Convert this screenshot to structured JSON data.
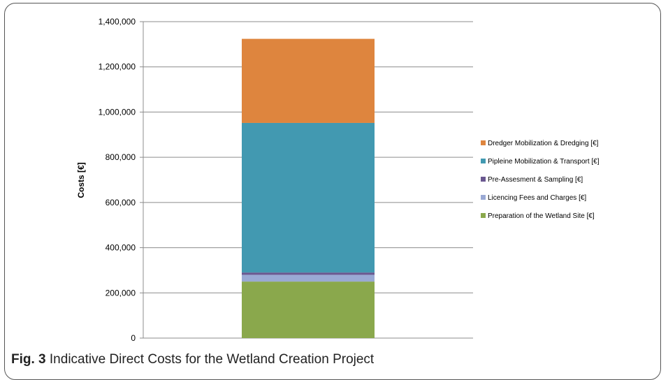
{
  "caption": {
    "label": "Fig. 3",
    "text": "Indicative Direct Costs for the Wetland Creation Project"
  },
  "chart_data": {
    "type": "bar",
    "stacked": true,
    "categories": [
      ""
    ],
    "ylabel": "Costs [€]",
    "ylim": [
      0,
      1400000
    ],
    "yticks": [
      0,
      200000,
      400000,
      600000,
      800000,
      1000000,
      1200000,
      1400000
    ],
    "ytick_labels": [
      "0",
      "200,000",
      "400,000",
      "600,000",
      "800,000",
      "1,000,000",
      "1,200,000",
      "1,400,000"
    ],
    "grid": true,
    "legend_position": "right",
    "series": [
      {
        "name": "Preparation of the Wetland Site [€]",
        "values": [
          250000
        ],
        "color": "#8aa84c"
      },
      {
        "name": "Licencing Fees and Charges [€]",
        "values": [
          30000
        ],
        "color": "#9aa9d4"
      },
      {
        "name": "Pre-Assesment & Sampling [€]",
        "values": [
          10000
        ],
        "color": "#6a5890"
      },
      {
        "name": "Pipleine Mobilization & Transport [€]",
        "values": [
          662000
        ],
        "color": "#4299b1"
      },
      {
        "name": "Dredger Mobilization & Dredging [€]",
        "values": [
          372000
        ],
        "color": "#de853e"
      }
    ]
  }
}
